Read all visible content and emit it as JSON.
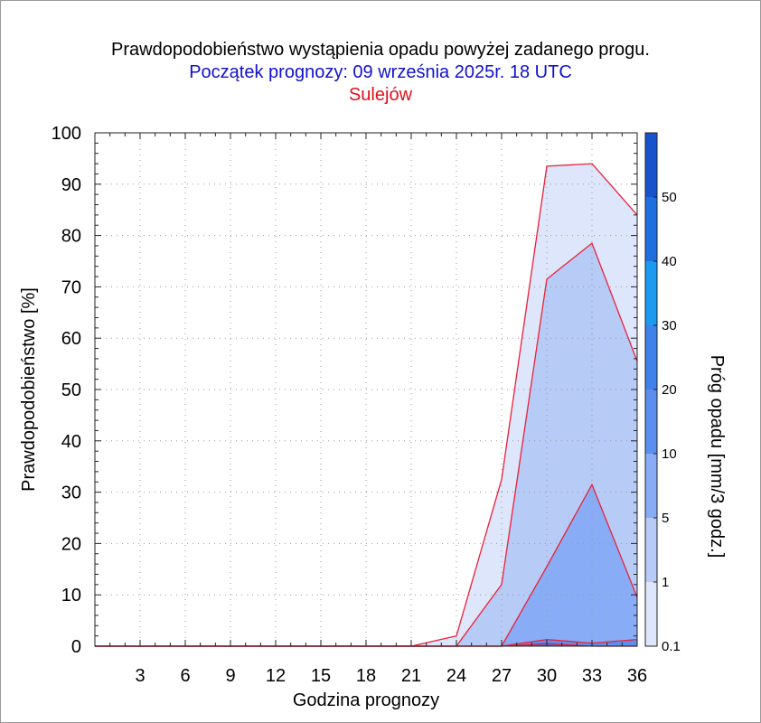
{
  "title": "Prawdopodobieństwo wystąpienia opadu powyżej zadanego progu.",
  "subtitle": "Początek prognozy: 09 września 2025r. 18 UTC",
  "location": "Sulejów",
  "colors": {
    "title": "#000000",
    "subtitle": "#1010d0",
    "location": "#e0101a",
    "outline": "#e8223a",
    "grid": "#9a9a9a"
  },
  "chart_data": {
    "type": "area",
    "xlabel": "Godzina prognozy",
    "ylabel": "Prawdopodobieństwo [%]",
    "xlim": [
      0,
      36
    ],
    "ylim": [
      0,
      100
    ],
    "xticks": [
      "3",
      "6",
      "9",
      "12",
      "15",
      "18",
      "21",
      "24",
      "27",
      "30",
      "33",
      "36"
    ],
    "yticks": [
      "0",
      "10",
      "20",
      "30",
      "40",
      "50",
      "60",
      "70",
      "80",
      "90",
      "100"
    ],
    "grid": true,
    "x": [
      0,
      3,
      6,
      9,
      12,
      15,
      18,
      21,
      24,
      27,
      30,
      33,
      36
    ],
    "series": [
      {
        "name": "0.1",
        "color": "#dde6fb",
        "values": [
          0,
          0,
          0,
          0,
          0,
          0,
          0,
          0,
          2,
          32.5,
          93.5,
          94,
          84
        ]
      },
      {
        "name": "1",
        "color": "#b7cbf7",
        "values": [
          0,
          0,
          0,
          0,
          0,
          0,
          0,
          0,
          0,
          12,
          71.5,
          78.5,
          55.5
        ]
      },
      {
        "name": "5",
        "color": "#88acf5",
        "values": [
          0,
          0,
          0,
          0,
          0,
          0,
          0,
          0,
          0,
          0,
          15.5,
          31.5,
          9.5
        ]
      },
      {
        "name": "10",
        "color": "#5a8eef",
        "values": [
          0,
          0,
          0,
          0,
          0,
          0,
          0,
          0,
          0,
          0,
          1.3,
          0.6,
          1.3
        ]
      },
      {
        "name": "20",
        "color": "#2f74ea",
        "values": [
          0,
          0,
          0,
          0,
          0,
          0,
          0,
          0,
          0,
          0,
          0.5,
          0,
          0
        ]
      }
    ],
    "colorbar": {
      "label": "Próg opadu [mm/3 godz.]",
      "tick_labels": [
        "0.1",
        "1",
        "5",
        "10",
        "20",
        "30",
        "40",
        "50"
      ],
      "colors": [
        "#dde6fb",
        "#b7cbf7",
        "#88acf5",
        "#5a8eef",
        "#3f82ec",
        "#1a9af0",
        "#1f6fe0",
        "#1653cc",
        "#0a3ba8"
      ]
    }
  }
}
